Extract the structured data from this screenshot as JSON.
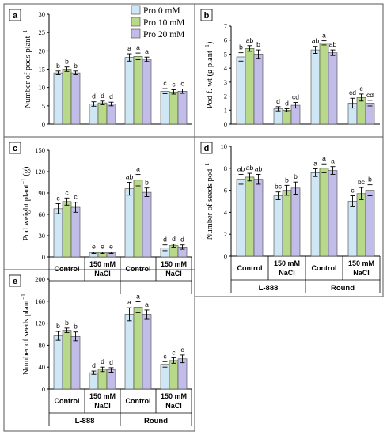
{
  "colors": {
    "pro0": "#cfe6f4",
    "pro10": "#b9d98a",
    "pro20": "#c2bde8",
    "frame": "#555555"
  },
  "legend": [
    "Pro 0 mM",
    "Pro 10 mM",
    "Pro 20 mM"
  ],
  "chart_data": [
    {
      "panel": "a",
      "type": "bar",
      "ylabel": "Number of pods plant",
      "ylabel_sup": "−1",
      "ylim": [
        0,
        30
      ],
      "yticks": [
        0,
        5,
        10,
        15,
        20,
        25,
        30
      ],
      "categories": [
        "L-888 Control",
        "L-888 150 mM NaCl",
        "Round Control",
        "Round 150 mM NaCl"
      ],
      "series": [
        {
          "name": "Pro 0 mM",
          "values": [
            14,
            5.5,
            18.2,
            9
          ],
          "errors": [
            0.5,
            0.6,
            1.0,
            0.7
          ]
        },
        {
          "name": "Pro 10 mM",
          "values": [
            15,
            5.8,
            18.5,
            8.8
          ],
          "errors": [
            0.6,
            0.5,
            0.9,
            0.6
          ]
        },
        {
          "name": "Pro 20 mM",
          "values": [
            14,
            5.5,
            17.7,
            9
          ],
          "errors": [
            0.5,
            0.5,
            0.6,
            0.6
          ]
        }
      ],
      "labels": [
        [
          "b",
          "b",
          "b"
        ],
        [
          "d",
          "d",
          "d"
        ],
        [
          "a",
          "a",
          "a"
        ],
        [
          "c",
          "c",
          "c"
        ]
      ]
    },
    {
      "panel": "b",
      "type": "bar",
      "ylabel": "Pod f. wt (g plant",
      "ylabel_sup": "−1",
      "ylabel_tail": ")",
      "ylim": [
        0,
        7
      ],
      "yticks": [
        0,
        1,
        2,
        3,
        4,
        5,
        6,
        7
      ],
      "categories": [
        "L-888 Control",
        "L-888 150 mM NaCl",
        "Round Control",
        "Round 150 mM NaCl"
      ],
      "series": [
        {
          "name": "Pro 0 mM",
          "values": [
            4.8,
            1.1,
            5.3,
            1.5
          ],
          "errors": [
            0.3,
            0.15,
            0.25,
            0.35
          ]
        },
        {
          "name": "Pro 10 mM",
          "values": [
            5.4,
            1.0,
            5.8,
            1.9
          ],
          "errors": [
            0.2,
            0.1,
            0.15,
            0.25
          ]
        },
        {
          "name": "Pro 20 mM",
          "values": [
            5.0,
            1.35,
            5.1,
            1.5
          ],
          "errors": [
            0.3,
            0.2,
            0.2,
            0.2
          ]
        }
      ],
      "labels": [
        [
          "b",
          "ab",
          "b"
        ],
        [
          "d",
          "d",
          "cd"
        ],
        [
          "ab",
          "a",
          "ab"
        ],
        [
          "cd",
          "c",
          "cd"
        ]
      ]
    },
    {
      "panel": "c",
      "type": "bar",
      "ylabel": "Pod weight plant",
      "ylabel_sup": "−1",
      "ylabel_tail": " (g)",
      "ylim": [
        0,
        150
      ],
      "yticks": [
        0,
        30,
        60,
        90,
        120,
        150
      ],
      "categories": [
        "L-888 Control",
        "L-888 150 mM NaCl",
        "Round Control",
        "Round 150 mM NaCl"
      ],
      "series": [
        {
          "name": "Pro 0 mM",
          "values": [
            68,
            6,
            96,
            13
          ],
          "errors": [
            7,
            1,
            9,
            4
          ]
        },
        {
          "name": "Pro 10 mM",
          "values": [
            78,
            6,
            108,
            16
          ],
          "errors": [
            5,
            1,
            8,
            2
          ]
        },
        {
          "name": "Pro 20 mM",
          "values": [
            70,
            6,
            91,
            14
          ],
          "errors": [
            7,
            1,
            6,
            3
          ]
        }
      ],
      "labels": [
        [
          "c",
          "c",
          "c"
        ],
        [
          "e",
          "e",
          "e"
        ],
        [
          "ab",
          "a",
          "b"
        ],
        [
          "d",
          "d",
          "d"
        ]
      ]
    },
    {
      "panel": "d",
      "type": "bar",
      "ylabel": "Number of seeds pod",
      "ylabel_sup": "−1",
      "ylim": [
        0,
        10
      ],
      "yticks": [
        0,
        2,
        4,
        6,
        8,
        10
      ],
      "categories": [
        "L-888 Control",
        "L-888 150 mM NaCl",
        "Round Control",
        "Round 150 mM NaCl"
      ],
      "series": [
        {
          "name": "Pro 0 mM",
          "values": [
            7.0,
            5.5,
            7.6,
            5.0
          ],
          "errors": [
            0.45,
            0.35,
            0.35,
            0.5
          ]
        },
        {
          "name": "Pro 10 mM",
          "values": [
            7.2,
            6.0,
            8.0,
            5.7
          ],
          "errors": [
            0.35,
            0.45,
            0.4,
            0.55
          ]
        },
        {
          "name": "Pro 20 mM",
          "values": [
            7.0,
            6.2,
            7.8,
            6.0
          ],
          "errors": [
            0.45,
            0.55,
            0.35,
            0.5
          ]
        }
      ],
      "labels": [
        [
          "ab",
          "ab",
          "ab"
        ],
        [
          "bc",
          "b",
          "b"
        ],
        [
          "a",
          "a",
          "a"
        ],
        [
          "c",
          "bc",
          "b"
        ]
      ]
    },
    {
      "panel": "e",
      "type": "bar",
      "ylabel": "Number of seeds plant",
      "ylabel_sup": "−1",
      "ylim": [
        0,
        200
      ],
      "yticks": [
        0,
        40,
        80,
        120,
        160,
        200
      ],
      "categories": [
        "L-888 Control",
        "L-888 150 mM NaCl",
        "Round Control",
        "Round 150 mM NaCl"
      ],
      "series": [
        {
          "name": "Pro 0 mM",
          "values": [
            97,
            30,
            136,
            45
          ],
          "errors": [
            8,
            3,
            12,
            5
          ]
        },
        {
          "name": "Pro 10 mM",
          "values": [
            107,
            36,
            149,
            52
          ],
          "errors": [
            4,
            4,
            10,
            5
          ]
        },
        {
          "name": "Pro 20 mM",
          "values": [
            96,
            35,
            136,
            55
          ],
          "errors": [
            8,
            4,
            8,
            7
          ]
        }
      ],
      "labels": [
        [
          "b",
          "b",
          "b"
        ],
        [
          "d",
          "d",
          "d"
        ],
        [
          "a",
          "a",
          "a"
        ],
        [
          "c",
          "c",
          "c"
        ]
      ]
    }
  ],
  "treatments": {
    "control": "Control",
    "salt_line1": "150 mM",
    "salt_line2": "NaCl"
  },
  "genotypes": [
    "L-888",
    "Round"
  ]
}
